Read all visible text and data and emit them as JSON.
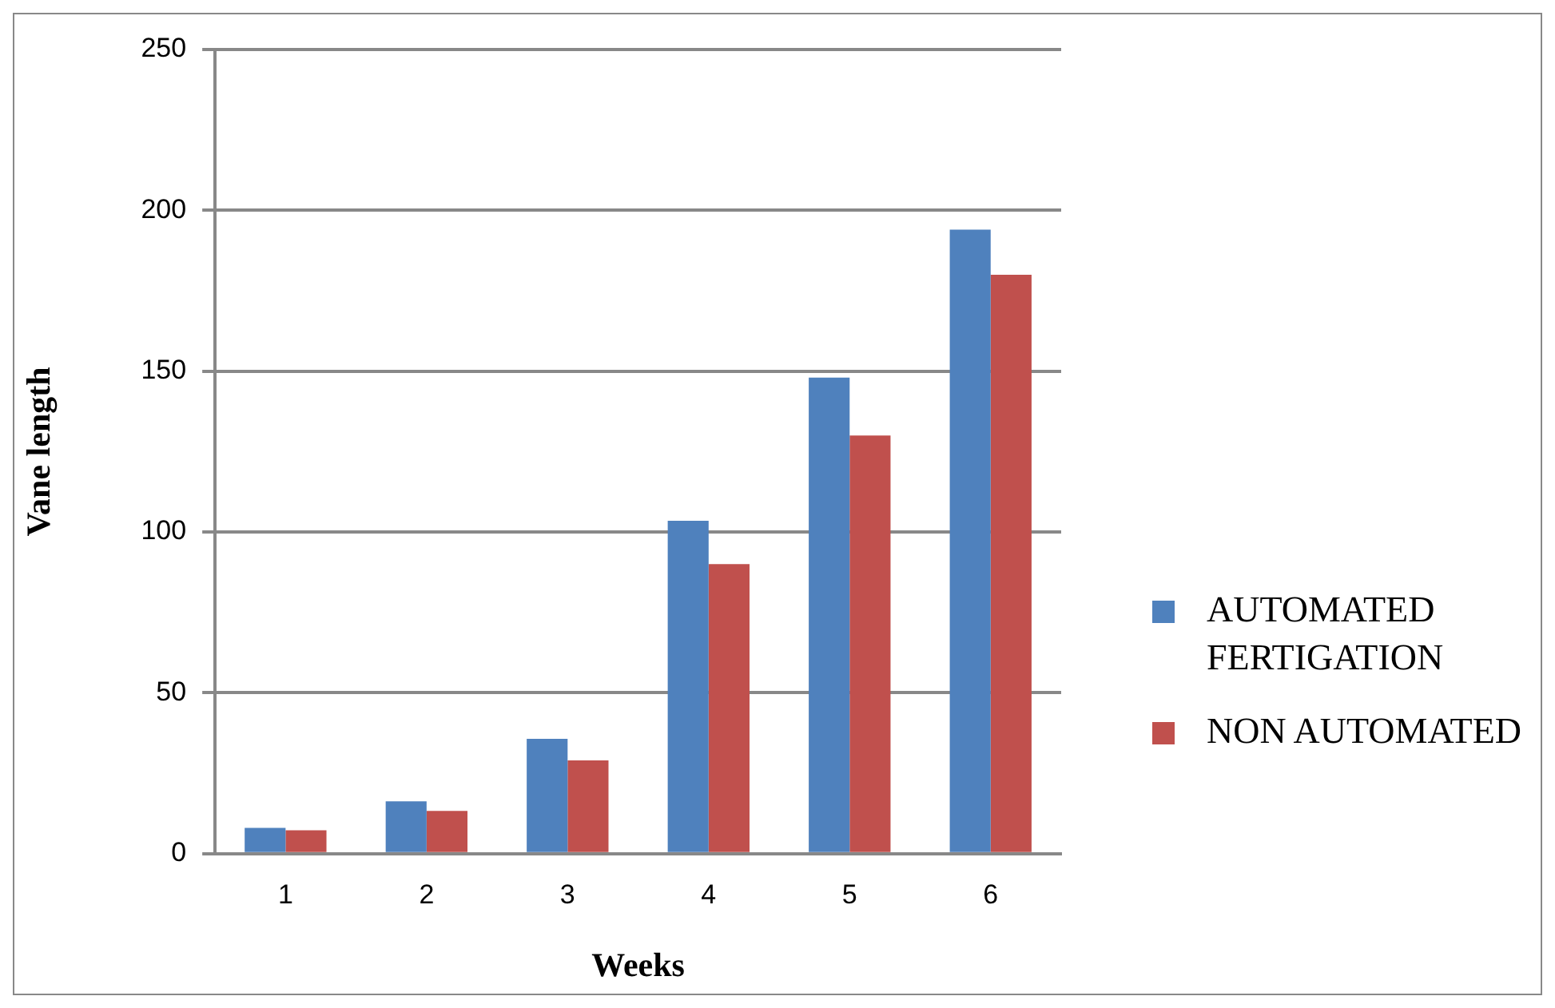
{
  "chart_data": {
    "type": "bar",
    "xlabel": "Weeks",
    "ylabel": "Vane length",
    "categories": [
      "1",
      "2",
      "3",
      "4",
      "5",
      "6"
    ],
    "series": [
      {
        "name": "AUTOMATED FERTIGATION",
        "color": "#4f81bd",
        "values": [
          8,
          16.3,
          35.7,
          103.5,
          148,
          194
        ]
      },
      {
        "name": "NON AUTOMATED",
        "color": "#c0504d",
        "values": [
          7.3,
          13.3,
          29,
          90,
          130,
          180
        ]
      }
    ],
    "ylim": [
      0,
      250
    ],
    "yticks": [
      0,
      50,
      100,
      150,
      200,
      250
    ],
    "grid": "y",
    "legend": "right"
  }
}
